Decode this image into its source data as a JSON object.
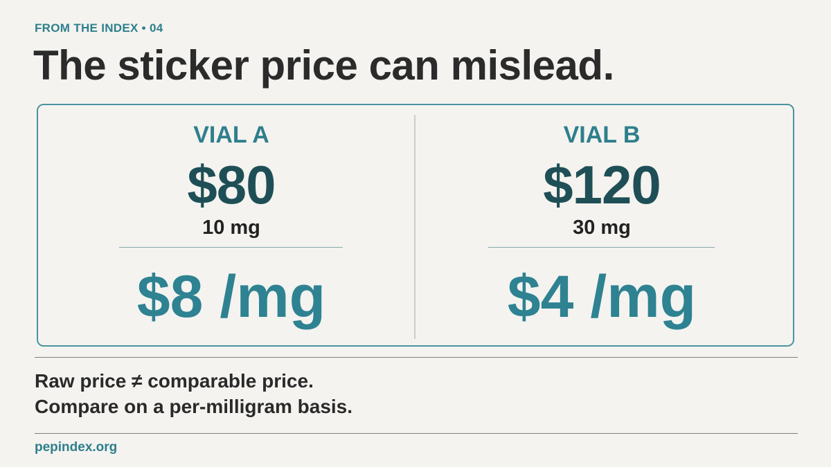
{
  "header": {
    "kicker": "FROM THE INDEX • 04",
    "title": "The sticker price can mislead."
  },
  "cards": [
    {
      "label": "VIAL A",
      "price": "$80",
      "amount": "10 mg",
      "per_mg": "$8 /mg"
    },
    {
      "label": "VIAL B",
      "price": "$120",
      "amount": "30 mg",
      "per_mg": "$4 /mg"
    }
  ],
  "footer": {
    "lines": [
      "Raw price ≠ comparable price.",
      "Compare on a per-milligram basis."
    ],
    "site": "pepindex.org"
  }
}
